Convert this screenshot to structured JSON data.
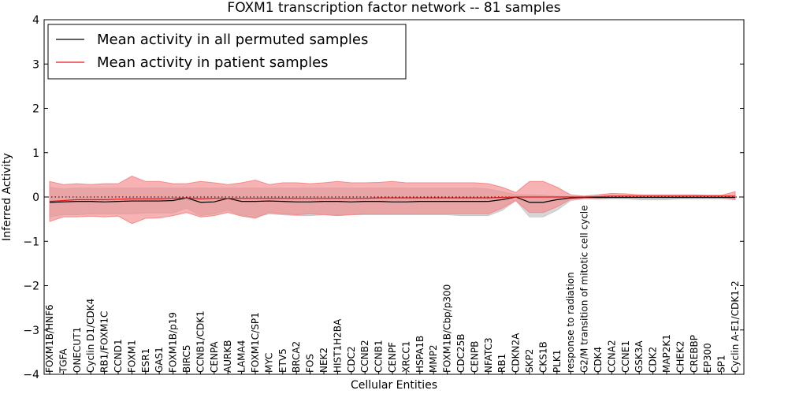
{
  "chart_data": {
    "type": "line",
    "title": "FOXM1 transcription factor network -- 81 samples",
    "xlabel": "Cellular Entities",
    "ylabel": "Inferred Activity",
    "ylim": [
      -4,
      4
    ],
    "yticks": [
      "−4",
      "−3",
      "−2",
      "−1",
      "0",
      "1",
      "2",
      "3",
      "4"
    ],
    "ytick_values": [
      -4,
      -3,
      -2,
      -1,
      0,
      1,
      2,
      3,
      4
    ],
    "reference_line": 0,
    "legend_position": "top-left",
    "categories": [
      "FOXM1B/HNF6",
      "TGFA",
      "ONECUT1",
      "Cyclin D1/CDK4",
      "RB1/FOXM1C",
      "CCND1",
      "FOXM1",
      "ESR1",
      "GAS1",
      "FOXM1B/p19",
      "BIRC5",
      "CCNB1/CDK1",
      "CENPA",
      "AURKB",
      "LAMA4",
      "FOXM1C/SP1",
      "MYC",
      "ETV5",
      "BRCA2",
      "FOS",
      "NEK2",
      "HIST1H2BA",
      "CDC2",
      "CCNB2",
      "CCNB1",
      "CENPF",
      "XRCC1",
      "HSPA1B",
      "MMP2",
      "FOXM1B/Cbp/p300",
      "CDC25B",
      "CENPB",
      "NFATC3",
      "RB1",
      "CDKN2A",
      "SKP2",
      "CKS1B",
      "PLK1",
      "response to radiation",
      "G2/M transition of mitotic cell cycle",
      "CDK4",
      "CCNA2",
      "CCNE1",
      "GSK3A",
      "CDK2",
      "MAP2K1",
      "CHEK2",
      "CREBBP",
      "EP300",
      "SP1",
      "Cyclin A-E1/CDK1-2"
    ],
    "series": [
      {
        "name": "Mean activity in all permuted samples",
        "color": "#000000",
        "band_color": "#c8c8c8",
        "values": [
          -0.12,
          -0.11,
          -0.1,
          -0.1,
          -0.11,
          -0.1,
          -0.09,
          -0.09,
          -0.09,
          -0.08,
          -0.02,
          -0.12,
          -0.11,
          -0.03,
          -0.1,
          -0.1,
          -0.09,
          -0.1,
          -0.11,
          -0.11,
          -0.1,
          -0.1,
          -0.11,
          -0.1,
          -0.1,
          -0.11,
          -0.11,
          -0.1,
          -0.1,
          -0.1,
          -0.1,
          -0.1,
          -0.1,
          -0.06,
          0.0,
          -0.12,
          -0.12,
          -0.06,
          -0.02,
          -0.01,
          -0.01,
          -0.01,
          -0.01,
          -0.01,
          -0.01,
          -0.01,
          -0.01,
          -0.01,
          -0.01,
          -0.01,
          -0.01
        ],
        "upper": [
          0.22,
          0.18,
          0.2,
          0.2,
          0.2,
          0.2,
          0.2,
          0.2,
          0.2,
          0.2,
          0.2,
          0.2,
          0.2,
          0.2,
          0.2,
          0.2,
          0.2,
          0.2,
          0.2,
          0.2,
          0.2,
          0.2,
          0.2,
          0.2,
          0.2,
          0.2,
          0.2,
          0.2,
          0.2,
          0.2,
          0.2,
          0.2,
          0.18,
          0.12,
          0.05,
          0.05,
          0.04,
          0.02,
          0.01,
          0.01,
          0.01,
          0.01,
          0.01,
          0.01,
          0.01,
          0.01,
          0.01,
          0.01,
          0.01,
          0.01,
          0.01
        ],
        "lower": [
          -0.45,
          -0.4,
          -0.4,
          -0.38,
          -0.38,
          -0.38,
          -0.38,
          -0.36,
          -0.36,
          -0.36,
          -0.25,
          -0.42,
          -0.38,
          -0.3,
          -0.42,
          -0.45,
          -0.38,
          -0.4,
          -0.42,
          -0.42,
          -0.4,
          -0.4,
          -0.4,
          -0.4,
          -0.4,
          -0.4,
          -0.4,
          -0.4,
          -0.4,
          -0.4,
          -0.42,
          -0.42,
          -0.42,
          -0.3,
          -0.08,
          -0.45,
          -0.45,
          -0.3,
          -0.08,
          -0.04,
          -0.04,
          -0.04,
          -0.04,
          -0.06,
          -0.06,
          -0.06,
          -0.04,
          -0.04,
          -0.04,
          -0.04,
          -0.04
        ]
      },
      {
        "name": "Mean activity in patient samples",
        "color": "#e8161a",
        "band_color": "#f38b8c",
        "values": [
          -0.1,
          -0.08,
          -0.06,
          -0.06,
          -0.06,
          -0.05,
          -0.04,
          -0.04,
          -0.04,
          -0.03,
          -0.02,
          -0.04,
          -0.03,
          -0.03,
          -0.03,
          -0.03,
          -0.03,
          -0.03,
          -0.03,
          -0.03,
          -0.03,
          -0.03,
          -0.03,
          -0.03,
          -0.02,
          -0.02,
          -0.02,
          -0.02,
          -0.02,
          -0.02,
          -0.02,
          -0.02,
          -0.02,
          -0.01,
          0.0,
          0.0,
          0.0,
          0.0,
          0.0,
          0.0,
          0.01,
          0.02,
          0.02,
          0.02,
          0.02,
          0.02,
          0.02,
          0.02,
          0.02,
          0.02,
          0.02
        ],
        "upper": [
          0.35,
          0.28,
          0.3,
          0.28,
          0.3,
          0.3,
          0.47,
          0.35,
          0.35,
          0.3,
          0.3,
          0.35,
          0.32,
          0.28,
          0.32,
          0.38,
          0.28,
          0.32,
          0.32,
          0.3,
          0.32,
          0.35,
          0.32,
          0.32,
          0.33,
          0.35,
          0.32,
          0.32,
          0.32,
          0.32,
          0.32,
          0.32,
          0.3,
          0.22,
          0.1,
          0.35,
          0.35,
          0.22,
          0.05,
          0.02,
          0.05,
          0.08,
          0.07,
          0.05,
          0.05,
          0.05,
          0.05,
          0.05,
          0.04,
          0.04,
          0.12
        ],
        "lower": [
          -0.55,
          -0.45,
          -0.45,
          -0.43,
          -0.45,
          -0.43,
          -0.6,
          -0.48,
          -0.47,
          -0.42,
          -0.35,
          -0.45,
          -0.42,
          -0.35,
          -0.43,
          -0.48,
          -0.35,
          -0.38,
          -0.4,
          -0.38,
          -0.4,
          -0.42,
          -0.4,
          -0.38,
          -0.38,
          -0.38,
          -0.38,
          -0.38,
          -0.38,
          -0.38,
          -0.38,
          -0.38,
          -0.38,
          -0.25,
          -0.08,
          -0.35,
          -0.35,
          -0.22,
          -0.05,
          -0.03,
          -0.04,
          -0.02,
          -0.02,
          -0.02,
          -0.02,
          -0.02,
          -0.02,
          -0.02,
          -0.02,
          -0.02,
          -0.06
        ]
      }
    ]
  }
}
